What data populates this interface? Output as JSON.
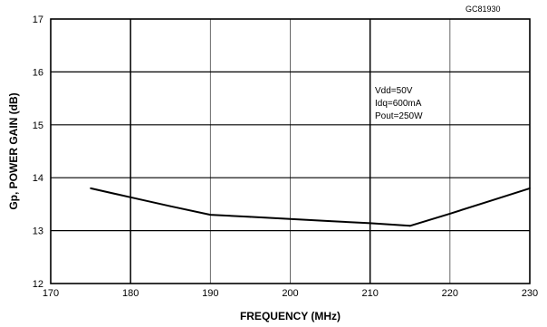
{
  "chart_data": {
    "type": "line",
    "code": "GC81930",
    "xlabel": "FREQUENCY (MHz)",
    "ylabel": "Gp, POWER GAIN (dB)",
    "xlim": [
      170,
      230
    ],
    "ylim": [
      12,
      17
    ],
    "xticks": [
      170,
      180,
      190,
      200,
      210,
      220,
      230
    ],
    "yticks": [
      12,
      13,
      14,
      15,
      16,
      17
    ],
    "grid": true,
    "annotations": [
      "Vdd=50V",
      "Idq=600mA",
      "Pout=250W"
    ],
    "series": [
      {
        "x": [
          175,
          180,
          185,
          190,
          195,
          200,
          205,
          210,
          215,
          220,
          225,
          230
        ],
        "y": [
          13.8,
          13.63,
          13.46,
          13.3,
          13.26,
          13.22,
          13.18,
          13.14,
          13.09,
          13.32,
          13.56,
          13.8
        ]
      }
    ]
  }
}
